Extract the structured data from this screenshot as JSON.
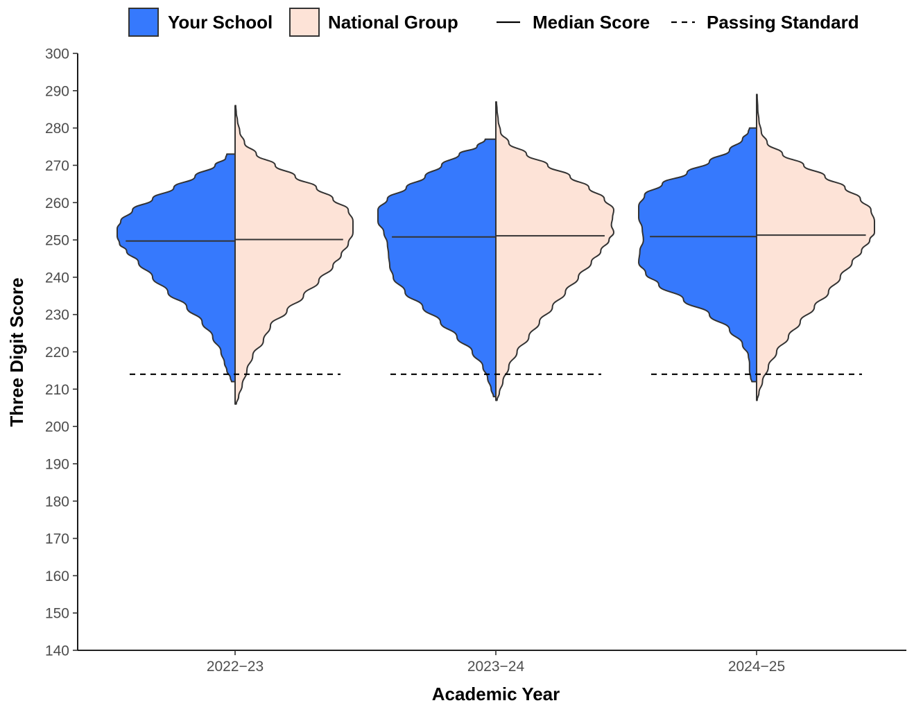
{
  "chart_data": {
    "type": "split-violin",
    "xlabel": "Academic Year",
    "ylabel": "Three Digit Score",
    "ylim": [
      140,
      300
    ],
    "yticks": [
      140,
      150,
      160,
      170,
      180,
      190,
      200,
      210,
      220,
      230,
      240,
      250,
      260,
      270,
      280,
      290,
      300
    ],
    "grid": false,
    "legend_position": "top",
    "categories": [
      "2022−23",
      "2023−24",
      "2024−25"
    ],
    "legend": [
      {
        "label": "Your School",
        "kind": "fill",
        "color": "#3679fd"
      },
      {
        "label": "National Group",
        "kind": "fill",
        "color": "#fde3d7"
      },
      {
        "label": "Median Score",
        "kind": "solid-line"
      },
      {
        "label": "Passing Standard",
        "kind": "dashed-line"
      }
    ],
    "passing_standard": 214,
    "series": [
      {
        "name": "Your School",
        "side": "left",
        "color": "#3679fd",
        "groups": [
          {
            "median": 249.7,
            "min": 212,
            "max": 273,
            "density": [
              [
                212,
                0.03
              ],
              [
                213,
                0.04
              ],
              [
                215,
                0.07
              ],
              [
                217,
                0.09
              ],
              [
                220,
                0.12
              ],
              [
                224,
                0.19
              ],
              [
                228,
                0.28
              ],
              [
                232,
                0.41
              ],
              [
                236,
                0.57
              ],
              [
                240,
                0.7
              ],
              [
                244,
                0.82
              ],
              [
                247,
                0.92
              ],
              [
                249,
                0.98
              ],
              [
                251,
                1.0
              ],
              [
                253,
                1.0
              ],
              [
                255,
                0.97
              ],
              [
                258,
                0.87
              ],
              [
                261,
                0.7
              ],
              [
                264,
                0.52
              ],
              [
                267,
                0.34
              ],
              [
                270,
                0.17
              ],
              [
                272,
                0.08
              ],
              [
                273,
                0.07
              ]
            ]
          },
          {
            "median": 250.8,
            "min": 208,
            "max": 277,
            "density": [
              [
                208,
                0.02
              ],
              [
                210,
                0.04
              ],
              [
                213,
                0.07
              ],
              [
                216,
                0.11
              ],
              [
                220,
                0.2
              ],
              [
                224,
                0.33
              ],
              [
                228,
                0.47
              ],
              [
                232,
                0.62
              ],
              [
                236,
                0.77
              ],
              [
                240,
                0.87
              ],
              [
                243,
                0.9
              ],
              [
                246,
                0.91
              ],
              [
                249,
                0.92
              ],
              [
                252,
                0.95
              ],
              [
                255,
                1.0
              ],
              [
                258,
                1.0
              ],
              [
                261,
                0.92
              ],
              [
                264,
                0.76
              ],
              [
                267,
                0.6
              ],
              [
                270,
                0.46
              ],
              [
                273,
                0.31
              ],
              [
                275,
                0.16
              ],
              [
                277,
                0.09
              ]
            ]
          },
          {
            "median": 250.9,
            "min": 212,
            "max": 280,
            "density": [
              [
                212,
                0.04
              ],
              [
                213,
                0.05
              ],
              [
                215,
                0.06
              ],
              [
                217,
                0.06
              ],
              [
                219,
                0.07
              ],
              [
                222,
                0.12
              ],
              [
                226,
                0.23
              ],
              [
                230,
                0.4
              ],
              [
                234,
                0.62
              ],
              [
                238,
                0.83
              ],
              [
                241,
                0.94
              ],
              [
                244,
                1.0
              ],
              [
                247,
                0.99
              ],
              [
                250,
                0.96
              ],
              [
                253,
                0.97
              ],
              [
                256,
                1.0
              ],
              [
                259,
                1.0
              ],
              [
                262,
                0.95
              ],
              [
                265,
                0.8
              ],
              [
                268,
                0.59
              ],
              [
                271,
                0.4
              ],
              [
                274,
                0.23
              ],
              [
                277,
                0.12
              ],
              [
                279,
                0.07
              ],
              [
                280,
                0.06
              ]
            ]
          }
        ]
      },
      {
        "name": "National Group",
        "side": "right",
        "color": "#fde3d7",
        "groups": [
          {
            "median": 250.1,
            "min": 206,
            "max": 286,
            "density": [
              [
                206,
                0.01
              ],
              [
                208,
                0.03
              ],
              [
                211,
                0.06
              ],
              [
                215,
                0.1
              ],
              [
                219,
                0.15
              ],
              [
                223,
                0.24
              ],
              [
                227,
                0.3
              ],
              [
                231,
                0.44
              ],
              [
                235,
                0.58
              ],
              [
                239,
                0.71
              ],
              [
                243,
                0.83
              ],
              [
                246,
                0.9
              ],
              [
                249,
                0.96
              ],
              [
                252,
                1.0
              ],
              [
                255,
                1.0
              ],
              [
                258,
                0.96
              ],
              [
                261,
                0.83
              ],
              [
                264,
                0.69
              ],
              [
                267,
                0.51
              ],
              [
                270,
                0.34
              ],
              [
                273,
                0.18
              ],
              [
                276,
                0.08
              ],
              [
                279,
                0.04
              ],
              [
                282,
                0.02
              ],
              [
                284,
                0.01
              ],
              [
                286,
                0.005
              ]
            ]
          },
          {
            "median": 251.1,
            "min": 207,
            "max": 287,
            "density": [
              [
                207,
                0.01
              ],
              [
                209,
                0.03
              ],
              [
                212,
                0.06
              ],
              [
                216,
                0.11
              ],
              [
                220,
                0.18
              ],
              [
                224,
                0.28
              ],
              [
                228,
                0.37
              ],
              [
                232,
                0.48
              ],
              [
                236,
                0.59
              ],
              [
                240,
                0.7
              ],
              [
                244,
                0.81
              ],
              [
                247,
                0.89
              ],
              [
                250,
                0.96
              ],
              [
                252,
                1.0
              ],
              [
                254,
                0.98
              ],
              [
                256,
                0.99
              ],
              [
                258,
                1.0
              ],
              [
                261,
                0.92
              ],
              [
                264,
                0.79
              ],
              [
                267,
                0.63
              ],
              [
                270,
                0.44
              ],
              [
                273,
                0.26
              ],
              [
                276,
                0.11
              ],
              [
                279,
                0.04
              ],
              [
                282,
                0.02
              ],
              [
                285,
                0.01
              ],
              [
                287,
                0.005
              ]
            ]
          },
          {
            "median": 251.3,
            "min": 207,
            "max": 289,
            "density": [
              [
                207,
                0.005
              ],
              [
                209,
                0.02
              ],
              [
                212,
                0.05
              ],
              [
                216,
                0.1
              ],
              [
                220,
                0.17
              ],
              [
                224,
                0.27
              ],
              [
                228,
                0.37
              ],
              [
                232,
                0.49
              ],
              [
                236,
                0.61
              ],
              [
                240,
                0.71
              ],
              [
                244,
                0.81
              ],
              [
                247,
                0.89
              ],
              [
                250,
                0.96
              ],
              [
                252,
                1.0
              ],
              [
                255,
                1.0
              ],
              [
                258,
                0.97
              ],
              [
                261,
                0.88
              ],
              [
                264,
                0.75
              ],
              [
                267,
                0.58
              ],
              [
                270,
                0.4
              ],
              [
                273,
                0.22
              ],
              [
                276,
                0.09
              ],
              [
                279,
                0.04
              ],
              [
                282,
                0.02
              ],
              [
                285,
                0.01
              ],
              [
                289,
                0.005
              ]
            ]
          }
        ]
      }
    ]
  }
}
